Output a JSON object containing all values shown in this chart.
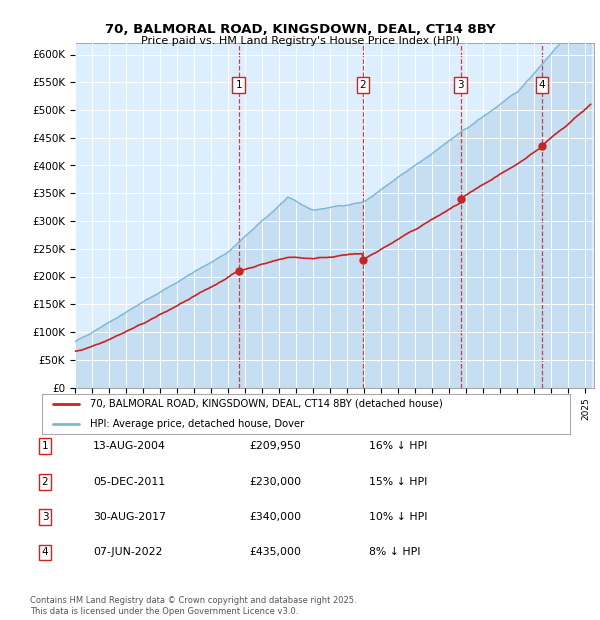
{
  "title": "70, BALMORAL ROAD, KINGSDOWN, DEAL, CT14 8BY",
  "subtitle": "Price paid vs. HM Land Registry's House Price Index (HPI)",
  "ylim": [
    0,
    620000
  ],
  "yticks": [
    0,
    50000,
    100000,
    150000,
    200000,
    250000,
    300000,
    350000,
    400000,
    450000,
    500000,
    550000,
    600000
  ],
  "ytick_labels": [
    "£0",
    "£50K",
    "£100K",
    "£150K",
    "£200K",
    "£250K",
    "£300K",
    "£350K",
    "£400K",
    "£450K",
    "£500K",
    "£550K",
    "£600K"
  ],
  "xlim_start": 1995.0,
  "xlim_end": 2025.5,
  "plot_bg_color": "#ddeeff",
  "line_color_hpi": "#7ab8d9",
  "line_color_price": "#cc2222",
  "sales": [
    {
      "num": 1,
      "year": 2004.616,
      "price": 209950
    },
    {
      "num": 2,
      "year": 2011.917,
      "price": 230000
    },
    {
      "num": 3,
      "year": 2017.664,
      "price": 340000
    },
    {
      "num": 4,
      "year": 2022.436,
      "price": 435000
    }
  ],
  "legend_price": "70, BALMORAL ROAD, KINGSDOWN, DEAL, CT14 8BY (detached house)",
  "legend_hpi": "HPI: Average price, detached house, Dover",
  "footer": "Contains HM Land Registry data © Crown copyright and database right 2025.\nThis data is licensed under the Open Government Licence v3.0.",
  "table_rows": [
    {
      "num": 1,
      "date": "13-AUG-2004",
      "price": "£209,950",
      "pct": "16% ↓ HPI"
    },
    {
      "num": 2,
      "date": "05-DEC-2011",
      "price": "£230,000",
      "pct": "15% ↓ HPI"
    },
    {
      "num": 3,
      "date": "30-AUG-2017",
      "price": "£340,000",
      "pct": "10% ↓ HPI"
    },
    {
      "num": 4,
      "date": "07-JUN-2022",
      "price": "£435,000",
      "pct": "8% ↓ HPI"
    }
  ]
}
